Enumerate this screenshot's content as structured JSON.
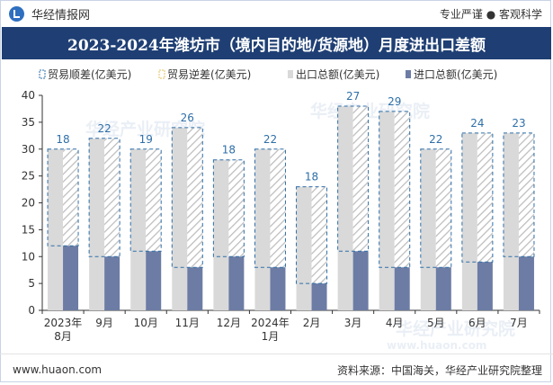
{
  "header": {
    "brand": "华经情报网",
    "tagline": "专业严谨 ● 客观科学"
  },
  "footer": {
    "url": "www.huaon.com",
    "source": "资料来源：中国海关，华经产业研究院整理"
  },
  "watermarks": [
    "华经产业研究院",
    "华经产业研究院",
    "华经产业研究院",
    "www.huaon.com"
  ],
  "colors": {
    "title_band": "#1f3f74",
    "export_bar": "#d9d9d9",
    "import_bar": "#6c7ca4",
    "surplus_outline": "#2f6fa8",
    "label": "#2f6fa8",
    "axis": "#333333"
  },
  "chart_data": {
    "type": "bar",
    "title": "2023-2024年潍坊市（境内目的地/货源地）月度进出口差额",
    "ylim": [
      0,
      40
    ],
    "yticks": [
      0,
      5,
      10,
      15,
      20,
      25,
      30,
      35,
      40
    ],
    "legend_position": "top",
    "categories": [
      [
        "2023年",
        "8月"
      ],
      [
        "9月"
      ],
      [
        "10月"
      ],
      [
        "11月"
      ],
      [
        "12月"
      ],
      [
        "2024年",
        "1月"
      ],
      [
        "2月"
      ],
      [
        "3月"
      ],
      [
        "4月"
      ],
      [
        "5月"
      ],
      [
        "6月"
      ],
      [
        "7月"
      ]
    ],
    "series": [
      {
        "name": "贸易顺差(亿美元)",
        "key": "surplus",
        "values": [
          18,
          22,
          19,
          26,
          18,
          22,
          18,
          27,
          29,
          22,
          24,
          23
        ]
      },
      {
        "name": "贸易逆差(亿美元)",
        "key": "deficit",
        "values": [
          0,
          0,
          0,
          0,
          0,
          0,
          0,
          0,
          0,
          0,
          0,
          0
        ]
      },
      {
        "name": "出口总额(亿美元)",
        "key": "export",
        "values": [
          30,
          32,
          30,
          34,
          28,
          30,
          23,
          38,
          37,
          30,
          33,
          33
        ]
      },
      {
        "name": "进口总额(亿美元)",
        "key": "import",
        "values": [
          12,
          10,
          11,
          8,
          10,
          8,
          5,
          11,
          8,
          8,
          9,
          10
        ]
      }
    ]
  }
}
